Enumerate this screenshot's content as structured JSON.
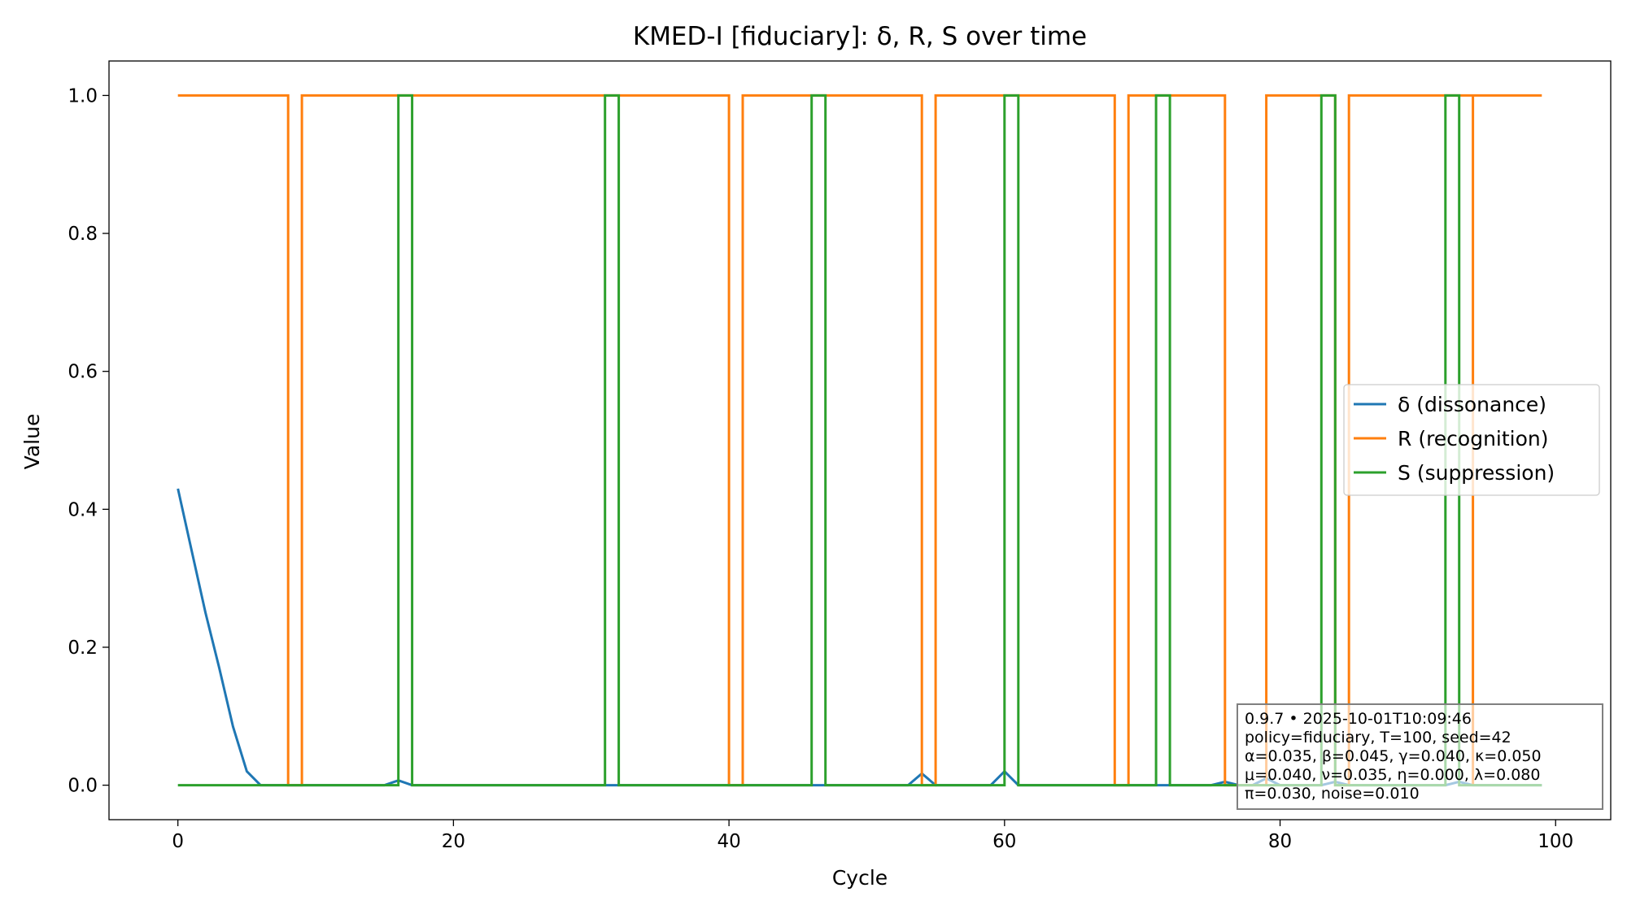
{
  "chart_data": {
    "type": "line",
    "title": "KMED-I [fiduciary]: δ, R, S over time",
    "xlabel": "Cycle",
    "ylabel": "Value",
    "xlim": [
      -5,
      104
    ],
    "ylim": [
      -0.05,
      1.05
    ],
    "x_ticks": [
      0,
      20,
      40,
      60,
      80,
      100
    ],
    "y_ticks": [
      0.0,
      0.2,
      0.4,
      0.6,
      0.8,
      1.0
    ],
    "x_tick_labels": [
      "0",
      "20",
      "40",
      "60",
      "80",
      "100"
    ],
    "y_tick_labels": [
      "0.0",
      "0.2",
      "0.4",
      "0.6",
      "0.8",
      "1.0"
    ],
    "grid": false,
    "legend_position": "center-right",
    "series": [
      {
        "name": "δ (dissonance)",
        "color": "#1f77b4",
        "step": false,
        "points": [
          [
            0,
            0.43
          ],
          [
            1,
            0.34
          ],
          [
            2,
            0.25
          ],
          [
            3,
            0.17
          ],
          [
            4,
            0.085
          ],
          [
            5,
            0.02
          ],
          [
            6,
            0
          ],
          [
            15,
            0
          ],
          [
            16,
            0.007
          ],
          [
            17,
            0
          ],
          [
            53,
            0
          ],
          [
            54,
            0.017
          ],
          [
            55,
            0
          ],
          [
            59,
            0
          ],
          [
            60,
            0.02
          ],
          [
            61,
            0
          ],
          [
            75,
            0
          ],
          [
            76,
            0.005
          ],
          [
            77,
            0
          ],
          [
            78,
            0
          ],
          [
            79,
            0.01
          ],
          [
            80,
            0
          ],
          [
            83,
            0
          ],
          [
            84,
            0.005
          ],
          [
            85,
            0
          ],
          [
            92,
            0
          ],
          [
            93,
            0.005
          ],
          [
            94,
            0
          ],
          [
            99,
            0
          ]
        ]
      },
      {
        "name": "R (recognition)",
        "color": "#ff7f0e",
        "step": true,
        "points": [
          [
            0,
            1
          ],
          [
            8,
            1
          ],
          [
            8,
            0
          ],
          [
            9,
            0
          ],
          [
            9,
            1
          ],
          [
            40,
            1
          ],
          [
            40,
            0
          ],
          [
            41,
            0
          ],
          [
            41,
            1
          ],
          [
            54,
            1
          ],
          [
            54,
            0
          ],
          [
            55,
            0
          ],
          [
            55,
            1
          ],
          [
            68,
            1
          ],
          [
            68,
            0
          ],
          [
            69,
            0
          ],
          [
            69,
            1
          ],
          [
            76,
            1
          ],
          [
            76,
            0
          ],
          [
            79,
            0
          ],
          [
            79,
            1
          ],
          [
            84,
            1
          ],
          [
            84,
            0
          ],
          [
            85,
            0
          ],
          [
            85,
            1
          ],
          [
            94,
            1
          ],
          [
            94,
            0
          ],
          [
            94,
            1
          ],
          [
            99,
            1
          ]
        ]
      },
      {
        "name": "S (suppression)",
        "color": "#2ca02c",
        "step": true,
        "points": [
          [
            0,
            0
          ],
          [
            16,
            0
          ],
          [
            16,
            1
          ],
          [
            17,
            1
          ],
          [
            17,
            0
          ],
          [
            31,
            0
          ],
          [
            31,
            1
          ],
          [
            32,
            1
          ],
          [
            32,
            0
          ],
          [
            46,
            0
          ],
          [
            46,
            1
          ],
          [
            47,
            1
          ],
          [
            47,
            0
          ],
          [
            60,
            0
          ],
          [
            60,
            1
          ],
          [
            61,
            1
          ],
          [
            61,
            0
          ],
          [
            71,
            0
          ],
          [
            71,
            1
          ],
          [
            72,
            1
          ],
          [
            72,
            0
          ],
          [
            83,
            0
          ],
          [
            83,
            1
          ],
          [
            84,
            1
          ],
          [
            84,
            0
          ],
          [
            92,
            0
          ],
          [
            92,
            1
          ],
          [
            93,
            1
          ],
          [
            93,
            0
          ],
          [
            99,
            0
          ]
        ]
      }
    ],
    "annotation_lines": [
      "0.9.7  •  2025-10-01T10:09:46",
      "policy=fiduciary, T=100, seed=42",
      "α=0.035, β=0.045, γ=0.040, κ=0.050",
      "μ=0.040, ν=0.035, η=0.000, λ=0.080",
      "π=0.030, noise=0.010"
    ]
  }
}
